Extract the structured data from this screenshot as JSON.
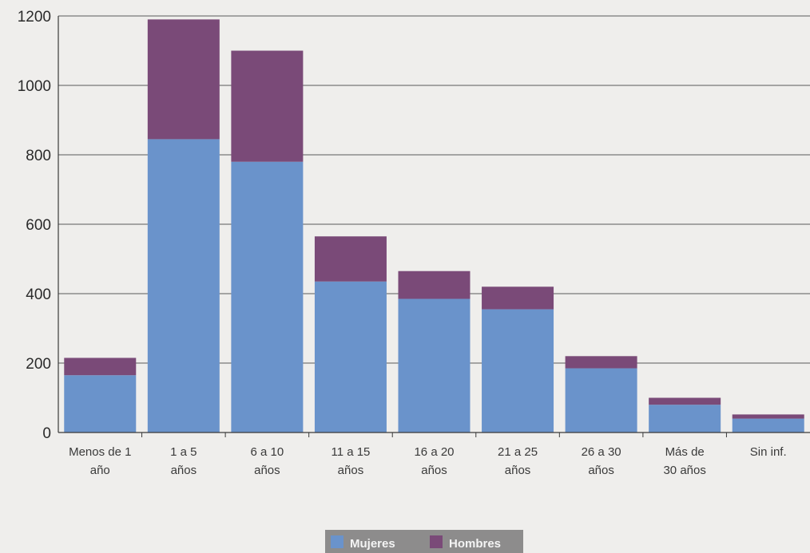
{
  "chart_data": {
    "type": "bar",
    "stacked": true,
    "categories": [
      [
        "Menos de 1",
        "año"
      ],
      [
        "1 a 5",
        "años"
      ],
      [
        "6 a 10",
        "años"
      ],
      [
        "11 a 15",
        "años"
      ],
      [
        "16 a 20",
        "años"
      ],
      [
        "21 a 25",
        "años"
      ],
      [
        "26 a 30",
        "años"
      ],
      [
        "Más de",
        "30 años"
      ],
      [
        "Sin inf.",
        ""
      ]
    ],
    "series": [
      {
        "name": "Mujeres",
        "color": "#6a93cb",
        "values": [
          165,
          845,
          780,
          435,
          385,
          355,
          185,
          80,
          40
        ]
      },
      {
        "name": "Hombres",
        "color": "#7a4a78",
        "values": [
          50,
          345,
          320,
          130,
          80,
          65,
          35,
          20,
          12
        ]
      }
    ],
    "yticks": [
      0,
      200,
      400,
      600,
      800,
      1000,
      1200
    ],
    "ylim": [
      0,
      1200
    ],
    "grid": true,
    "legend_position": "bottom"
  }
}
